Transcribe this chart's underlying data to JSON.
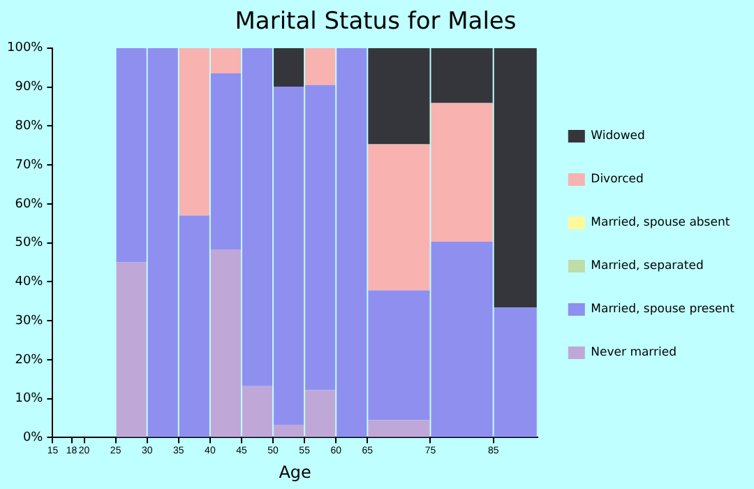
{
  "chart_data": {
    "type": "bar",
    "stacked": true,
    "title": "Marital Status for Males",
    "xlabel": "Age",
    "x": [
      27.5,
      32.5,
      37.5,
      42.5,
      47.5,
      52.5,
      57.5,
      62.5,
      70,
      80,
      88.5
    ],
    "xlim": [
      15,
      92
    ],
    "xticks": [
      15,
      18,
      20,
      25,
      30,
      35,
      40,
      45,
      50,
      55,
      60,
      65,
      75,
      85
    ],
    "ylim": [
      0,
      100
    ],
    "yticks": [
      {
        "value": 0,
        "label": "0%"
      },
      {
        "value": 10,
        "label": "10%"
      },
      {
        "value": 20,
        "label": "20%"
      },
      {
        "value": 30,
        "label": "30%"
      },
      {
        "value": 40,
        "label": "40%"
      },
      {
        "value": 50,
        "label": "50%"
      },
      {
        "value": 60,
        "label": "60%"
      },
      {
        "value": 70,
        "label": "70%"
      },
      {
        "value": 80,
        "label": "80%"
      },
      {
        "value": 90,
        "label": "90%"
      },
      {
        "value": 100,
        "label": "100%"
      }
    ],
    "grid": false,
    "legend": "right",
    "series": [
      {
        "name": "Never married",
        "color": "#bfa8d8",
        "values": [
          45,
          0,
          0,
          48.3,
          13.2,
          3.3,
          12.2,
          0,
          4.5,
          0,
          0
        ]
      },
      {
        "name": "Married, spouse present",
        "color": "#8f8ff0",
        "values": [
          55,
          100,
          57,
          45.2,
          86.8,
          86.8,
          78.3,
          100,
          33.3,
          50.3,
          33.4
        ]
      },
      {
        "name": "Married, separated",
        "color": "#c0dca8",
        "values": [
          0,
          0,
          0,
          0,
          0,
          0,
          0,
          0,
          0,
          0,
          0
        ]
      },
      {
        "name": "Married, spouse absent",
        "color": "#fff99a",
        "values": [
          0,
          0,
          0,
          0,
          0,
          0,
          0,
          0,
          0,
          0,
          0
        ]
      },
      {
        "name": "Divorced",
        "color": "#f8b2b0",
        "values": [
          0,
          0,
          43,
          6.5,
          0,
          0,
          9.5,
          0,
          37.5,
          35.6,
          0
        ]
      },
      {
        "name": "Widowed",
        "color": "#35363b",
        "values": [
          0,
          0,
          0,
          0,
          0,
          9.9,
          0,
          0,
          24.7,
          14.1,
          66.6
        ]
      }
    ]
  }
}
